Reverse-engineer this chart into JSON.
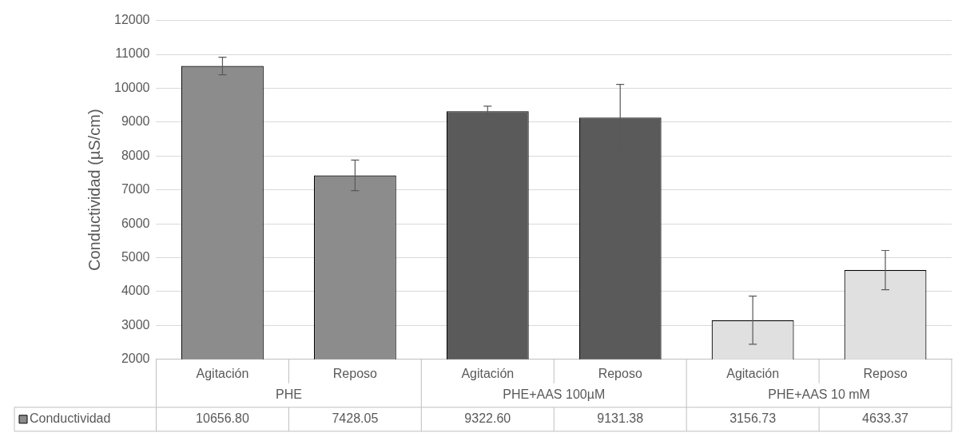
{
  "chart_data": {
    "type": "bar",
    "ylabel": "Conductividad (µS/cm)",
    "categories": [
      "Agitación",
      "Reposo",
      "Agitación",
      "Reposo",
      "Agitación",
      "Reposo"
    ],
    "annotations": [
      "PHE",
      "PHE+AAS 100µM",
      "PHE+AAS 10 mM"
    ],
    "series": [
      {
        "name": "Conductividad",
        "colors": [
          "#8c8c8c",
          "#8c8c8c",
          "#5a5a5a",
          "#5a5a5a",
          "#e0e0e0",
          "#e0e0e0"
        ],
        "values": [
          10656.8,
          7428.05,
          9322.6,
          9131.38,
          3156.73,
          4633.37
        ],
        "errors": [
          260,
          450,
          150,
          980,
          710,
          580
        ],
        "value_labels": [
          "10656.80",
          "7428.05",
          "9322.60",
          "9131.38",
          "3156.73",
          "4633.37"
        ]
      }
    ],
    "ylim": [
      2000,
      12000
    ],
    "yticks": [
      2000,
      3000,
      4000,
      5000,
      6000,
      7000,
      8000,
      9000,
      10000,
      11000,
      12000
    ],
    "grid": "y",
    "legend": "bottom"
  }
}
